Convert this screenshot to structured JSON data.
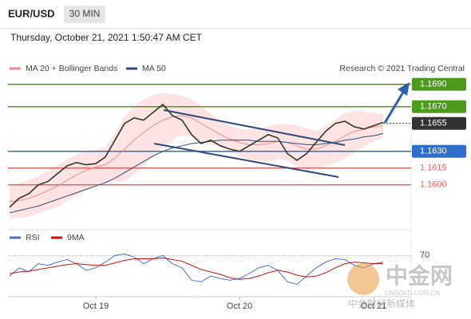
{
  "header": {
    "symbol": "EUR/USD",
    "timeframe": "30 MIN",
    "timestamp": "Thursday, October 21, 2021 1:50:47 AM CET"
  },
  "credit": "Research © 2021 Trading Central",
  "watermark": {
    "logo": "中金网",
    "site": "CNGOLD.COM.CN",
    "tagline": "中金财经新媒体"
  },
  "chart_data": [
    {
      "type": "line",
      "categories": [
        null,
        null,
        null,
        null,
        null,
        null,
        null,
        null,
        null,
        "Oct 19",
        null,
        null,
        null,
        null,
        null,
        null,
        null,
        null,
        null,
        null,
        null,
        null,
        null,
        null,
        "Oct 20",
        null,
        null,
        null,
        null,
        null,
        null,
        null,
        null,
        null,
        null,
        null,
        null,
        null,
        "Oct 21",
        null
      ],
      "values": [
        1.158,
        1.1588,
        1.1592,
        1.16,
        1.1603,
        1.161,
        1.1617,
        1.162,
        1.1618,
        1.1619,
        1.1625,
        1.164,
        1.1655,
        1.166,
        1.1658,
        1.1665,
        1.1672,
        1.1662,
        1.1658,
        1.1645,
        1.1637,
        1.164,
        1.1635,
        1.1632,
        1.163,
        1.1635,
        1.164,
        1.1645,
        1.1642,
        1.1628,
        1.1622,
        1.1628,
        1.1638,
        1.1648,
        1.1655,
        1.1657,
        1.1652,
        1.165,
        1.1653,
        1.1656
      ],
      "color": "#2b3a2b",
      "series": [
        {
          "name": "MA 20 + Bollinger Bands",
          "color": "#f08a8a",
          "band_color": "#fde3e3",
          "values": [
            1.1585,
            1.1586,
            1.1588,
            1.1591,
            1.1595,
            1.1599,
            1.1604,
            1.1609,
            1.1613,
            1.1616,
            1.1618,
            1.1624,
            1.1632,
            1.164,
            1.1647,
            1.1653,
            1.1658,
            1.1661,
            1.1662,
            1.166,
            1.1655,
            1.165,
            1.1645,
            1.1641,
            1.1638,
            1.1636,
            1.1636,
            1.1637,
            1.1639,
            1.1638,
            1.1635,
            1.1632,
            1.1632,
            1.1635,
            1.1639,
            1.1644,
            1.1648,
            1.165,
            1.1652,
            1.1653
          ],
          "upper": [
            1.16,
            1.1601,
            1.1604,
            1.1607,
            1.1612,
            1.1617,
            1.1622,
            1.1627,
            1.163,
            1.1631,
            1.1633,
            1.1645,
            1.166,
            1.167,
            1.1676,
            1.168,
            1.1682,
            1.1681,
            1.1679,
            1.1676,
            1.167,
            1.1663,
            1.1656,
            1.1652,
            1.165,
            1.1649,
            1.165,
            1.1652,
            1.1654,
            1.1654,
            1.1653,
            1.165,
            1.1648,
            1.1652,
            1.1658,
            1.1664,
            1.1666,
            1.1665,
            1.1664,
            1.1663
          ],
          "lower": [
            1.157,
            1.1571,
            1.1572,
            1.1575,
            1.1578,
            1.1581,
            1.1586,
            1.1591,
            1.1596,
            1.1601,
            1.1603,
            1.1603,
            1.1604,
            1.161,
            1.1618,
            1.1626,
            1.1634,
            1.1641,
            1.1645,
            1.1644,
            1.164,
            1.1637,
            1.1634,
            1.163,
            1.1626,
            1.1623,
            1.1622,
            1.1622,
            1.1624,
            1.1622,
            1.1617,
            1.1614,
            1.1616,
            1.1618,
            1.162,
            1.1624,
            1.163,
            1.1635,
            1.164,
            1.1643
          ]
        },
        {
          "name": "MA 50",
          "color": "#2d4a7a",
          "values": [
            1.1575,
            1.1577,
            1.1579,
            1.1581,
            1.1584,
            1.1587,
            1.159,
            1.1593,
            1.1596,
            1.1599,
            1.1602,
            1.1606,
            1.1611,
            1.1616,
            1.1621,
            1.1626,
            1.163,
            1.1633,
            1.1635,
            1.1637,
            1.1638,
            1.1639,
            1.164,
            1.164,
            1.164,
            1.164,
            1.1639,
            1.1639,
            1.1639,
            1.1638,
            1.1637,
            1.1636,
            1.1636,
            1.1637,
            1.1638,
            1.164,
            1.1641,
            1.1643,
            1.1644,
            1.1646
          ]
        }
      ],
      "ylim": [
        1.1562,
        1.1712
      ],
      "levels": [
        {
          "value": 1.169,
          "label": "1.1690",
          "color": "#4e9a1e",
          "filled": true
        },
        {
          "value": 1.167,
          "label": "1.1670",
          "color": "#4e9a1e",
          "filled": true
        },
        {
          "value": 1.1655,
          "label": "1.1655",
          "color": "#333333",
          "filled": true,
          "dashed": true
        },
        {
          "value": 1.163,
          "label": "1.1630",
          "color": "#2f6fc9",
          "filled": true
        },
        {
          "value": 1.1615,
          "label": "1.1615",
          "color": "#e06666",
          "filled": false
        },
        {
          "value": 1.16,
          "label": "1.1600",
          "color": "#e06666",
          "filled": false
        }
      ]
    },
    {
      "type": "line",
      "series": [
        {
          "name": "RSI",
          "color": "#4a6fd1",
          "values": [
            45,
            55,
            50,
            60,
            58,
            62,
            65,
            60,
            52,
            55,
            62,
            70,
            72,
            68,
            60,
            66,
            70,
            60,
            55,
            40,
            38,
            45,
            42,
            40,
            42,
            48,
            55,
            58,
            52,
            38,
            35,
            45,
            55,
            62,
            66,
            65,
            58,
            55,
            60,
            62
          ]
        },
        {
          "name": "9MA",
          "color": "#cc1111",
          "values": [
            48,
            50,
            51,
            53,
            55,
            57,
            59,
            60,
            59,
            58,
            58,
            61,
            64,
            66,
            66,
            66,
            67,
            65,
            63,
            58,
            53,
            50,
            47,
            43,
            41,
            42,
            45,
            49,
            52,
            50,
            46,
            44,
            45,
            49,
            55,
            60,
            62,
            61,
            60,
            60
          ]
        }
      ],
      "ylim": [
        20,
        80
      ],
      "yticks": [
        70
      ]
    }
  ]
}
